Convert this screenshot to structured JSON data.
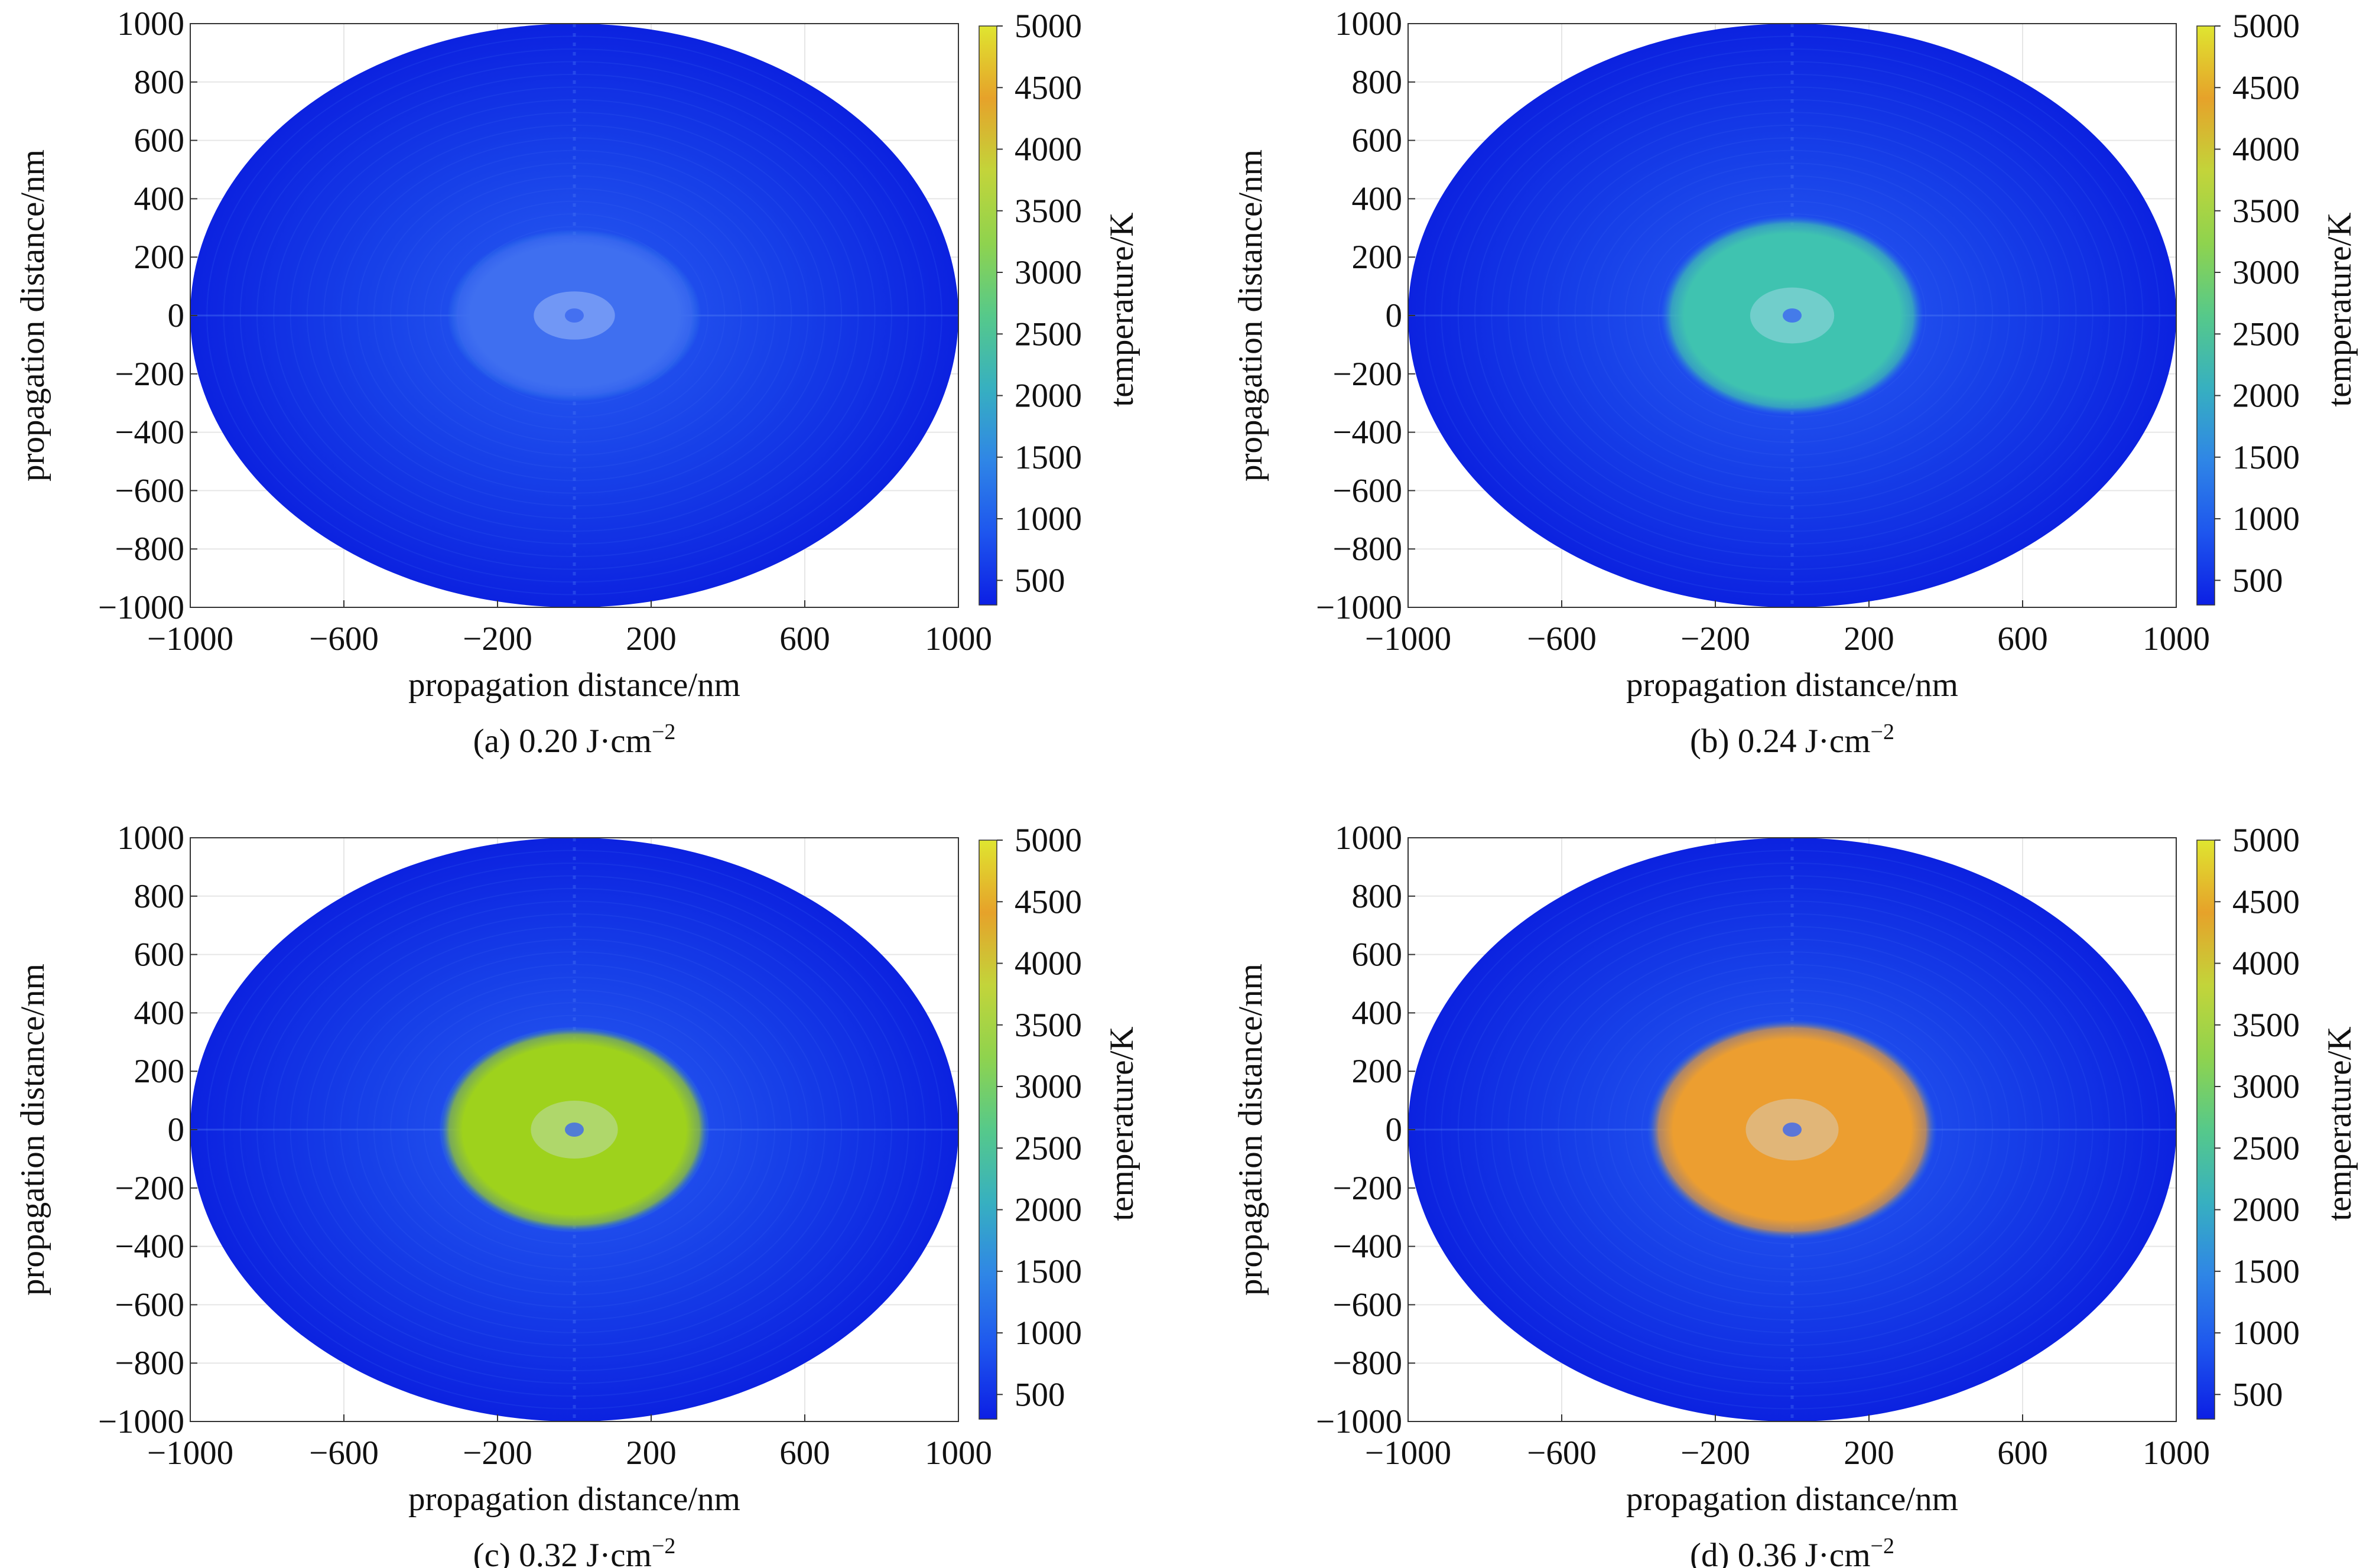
{
  "figure": {
    "panels": [
      {
        "caption": "(a) 0.20 J·cm",
        "caption_exp": "−2"
      },
      {
        "caption": "(b) 0.24 J·cm",
        "caption_exp": "−2"
      },
      {
        "caption": "(c) 0.32 J·cm",
        "caption_exp": "−2"
      },
      {
        "caption": "(d) 0.36 J·cm",
        "caption_exp": "−2"
      }
    ]
  },
  "chart_data": [
    {
      "type": "heatmap",
      "xlabel": "propagation distance/nm",
      "ylabel": "propagation distance/nm",
      "colorbar_label": "temperature/K",
      "xlim": [
        -1000,
        1000
      ],
      "ylim": [
        -1000,
        1000
      ],
      "x_ticks": [
        -1000,
        -600,
        -200,
        200,
        600,
        1000
      ],
      "y_ticks": [
        1000,
        800,
        600,
        400,
        200,
        0,
        -200,
        -400,
        -600,
        -800,
        -1000
      ],
      "colorbar_range": [
        300,
        5000
      ],
      "colorbar_ticks": [
        5000,
        4500,
        4000,
        3500,
        3000,
        2500,
        2000,
        1500,
        1000,
        500
      ],
      "colormap": [
        "#0c1fe4",
        "#1e56ee",
        "#2f86e6",
        "#37b0c0",
        "#56c98a",
        "#8fd34e",
        "#c3d43a",
        "#e6a22a",
        "#dfe530"
      ],
      "background_temperature_K": 500,
      "hot_spot": {
        "center": [
          0,
          0
        ],
        "radius_x_nm": 280,
        "radius_y_nm": 250,
        "peak_temperature_K": 1500,
        "color": "#3f6ff0"
      }
    },
    {
      "type": "heatmap",
      "xlabel": "propagation distance/nm",
      "ylabel": "propagation distance/nm",
      "colorbar_label": "temperature/K",
      "xlim": [
        -1000,
        1000
      ],
      "ylim": [
        -1000,
        1000
      ],
      "x_ticks": [
        -1000,
        -600,
        -200,
        200,
        600,
        1000
      ],
      "y_ticks": [
        1000,
        800,
        600,
        400,
        200,
        0,
        -200,
        -400,
        -600,
        -800,
        -1000
      ],
      "colorbar_range": [
        300,
        5000
      ],
      "colorbar_ticks": [
        5000,
        4500,
        4000,
        3500,
        3000,
        2500,
        2000,
        1500,
        1000,
        500
      ],
      "colormap": [
        "#0c1fe4",
        "#1e56ee",
        "#2f86e6",
        "#37b0c0",
        "#56c98a",
        "#8fd34e",
        "#c3d43a",
        "#e6a22a",
        "#dfe530"
      ],
      "background_temperature_K": 500,
      "hot_spot": {
        "center": [
          0,
          0
        ],
        "radius_x_nm": 290,
        "radius_y_nm": 290,
        "peak_temperature_K": 2500,
        "color": "#3fc3b0"
      }
    },
    {
      "type": "heatmap",
      "xlabel": "propagation distance/nm",
      "ylabel": "propagation distance/nm",
      "colorbar_label": "temperature/K",
      "xlim": [
        -1000,
        1000
      ],
      "ylim": [
        -1000,
        1000
      ],
      "x_ticks": [
        -1000,
        -600,
        -200,
        200,
        600,
        1000
      ],
      "y_ticks": [
        1000,
        800,
        600,
        400,
        200,
        0,
        -200,
        -400,
        -600,
        -800,
        -1000
      ],
      "colorbar_range": [
        300,
        5000
      ],
      "colorbar_ticks": [
        5000,
        4500,
        4000,
        3500,
        3000,
        2500,
        2000,
        1500,
        1000,
        500
      ],
      "colormap": [
        "#0c1fe4",
        "#1e56ee",
        "#2f86e6",
        "#37b0c0",
        "#56c98a",
        "#8fd34e",
        "#c3d43a",
        "#e6a22a",
        "#dfe530"
      ],
      "background_temperature_K": 500,
      "hot_spot": {
        "center": [
          0,
          0
        ],
        "radius_x_nm": 300,
        "radius_y_nm": 300,
        "peak_temperature_K": 3600,
        "color": "#9ed21c"
      }
    },
    {
      "type": "heatmap",
      "xlabel": "propagation distance/nm",
      "ylabel": "propagation distance/nm",
      "colorbar_label": "temperature/K",
      "xlim": [
        -1000,
        1000
      ],
      "ylim": [
        -1000,
        1000
      ],
      "x_ticks": [
        -1000,
        -600,
        -200,
        200,
        600,
        1000
      ],
      "y_ticks": [
        1000,
        800,
        600,
        400,
        200,
        0,
        -200,
        -400,
        -600,
        -800,
        -1000
      ],
      "colorbar_range": [
        300,
        5000
      ],
      "colorbar_ticks": [
        5000,
        4500,
        4000,
        3500,
        3000,
        2500,
        2000,
        1500,
        1000,
        500
      ],
      "colormap": [
        "#0c1fe4",
        "#1e56ee",
        "#2f86e6",
        "#37b0c0",
        "#56c98a",
        "#8fd34e",
        "#c3d43a",
        "#e6a22a",
        "#dfe530"
      ],
      "background_temperature_K": 500,
      "hot_spot": {
        "center": [
          0,
          0
        ],
        "radius_x_nm": 320,
        "radius_y_nm": 320,
        "peak_temperature_K": 4100,
        "color": "#ec9e30"
      }
    }
  ]
}
